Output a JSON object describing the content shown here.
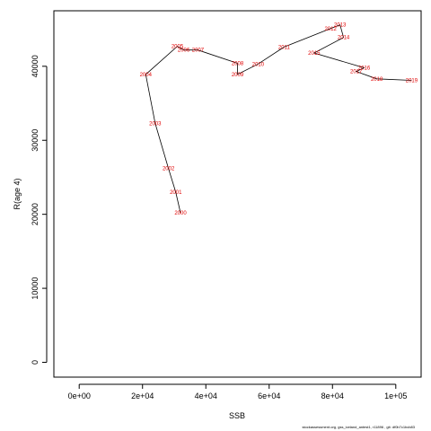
{
  "chart_data": {
    "type": "line",
    "title": "",
    "xlabel": "SSB",
    "ylabel": "R(age 4)",
    "xlim": [
      -8000,
      108000
    ],
    "ylim": [
      -2000,
      47500
    ],
    "x_ticks": [
      {
        "value": 0,
        "label": "0e+00"
      },
      {
        "value": 20000,
        "label": "2e+04"
      },
      {
        "value": 40000,
        "label": "4e+04"
      },
      {
        "value": 60000,
        "label": "6e+04"
      },
      {
        "value": 80000,
        "label": "8e+04"
      },
      {
        "value": 100000,
        "label": "1e+05"
      }
    ],
    "y_ticks": [
      {
        "value": 0,
        "label": "0"
      },
      {
        "value": 10000,
        "label": "10000"
      },
      {
        "value": 20000,
        "label": "20000"
      },
      {
        "value": 30000,
        "label": "30000"
      },
      {
        "value": 40000,
        "label": "40000"
      }
    ],
    "line_color": "#000000",
    "label_color": "#e00000",
    "points": [
      {
        "label": "2000",
        "x": 32000,
        "y": 20200
      },
      {
        "label": "2001",
        "x": 30500,
        "y": 23000
      },
      {
        "label": "2002",
        "x": 28200,
        "y": 26200
      },
      {
        "label": "2003",
        "x": 24000,
        "y": 32300
      },
      {
        "label": "2004",
        "x": 21000,
        "y": 38900
      },
      {
        "label": "2005",
        "x": 31000,
        "y": 42700
      },
      {
        "label": "2006",
        "x": 33000,
        "y": 42200
      },
      {
        "label": "2007",
        "x": 37500,
        "y": 42200
      },
      {
        "label": "2008",
        "x": 50000,
        "y": 40400
      },
      {
        "label": "2009",
        "x": 50000,
        "y": 38900
      },
      {
        "label": "2010",
        "x": 56500,
        "y": 40300
      },
      {
        "label": "2011",
        "x": 64700,
        "y": 42600
      },
      {
        "label": "2012",
        "x": 79400,
        "y": 45100
      },
      {
        "label": "2013",
        "x": 82400,
        "y": 45600
      },
      {
        "label": "2014",
        "x": 83500,
        "y": 43900
      },
      {
        "label": "2015",
        "x": 74200,
        "y": 41800
      },
      {
        "label": "2016",
        "x": 90000,
        "y": 39800
      },
      {
        "label": "2017",
        "x": 87500,
        "y": 39300
      },
      {
        "label": "2018",
        "x": 94000,
        "y": 38300
      },
      {
        "label": "2019",
        "x": 105000,
        "y": 38100
      }
    ]
  },
  "footer": "stockassessment.org, gss_iceland_antest1, r11896 , git: df0b7c1bcb83"
}
